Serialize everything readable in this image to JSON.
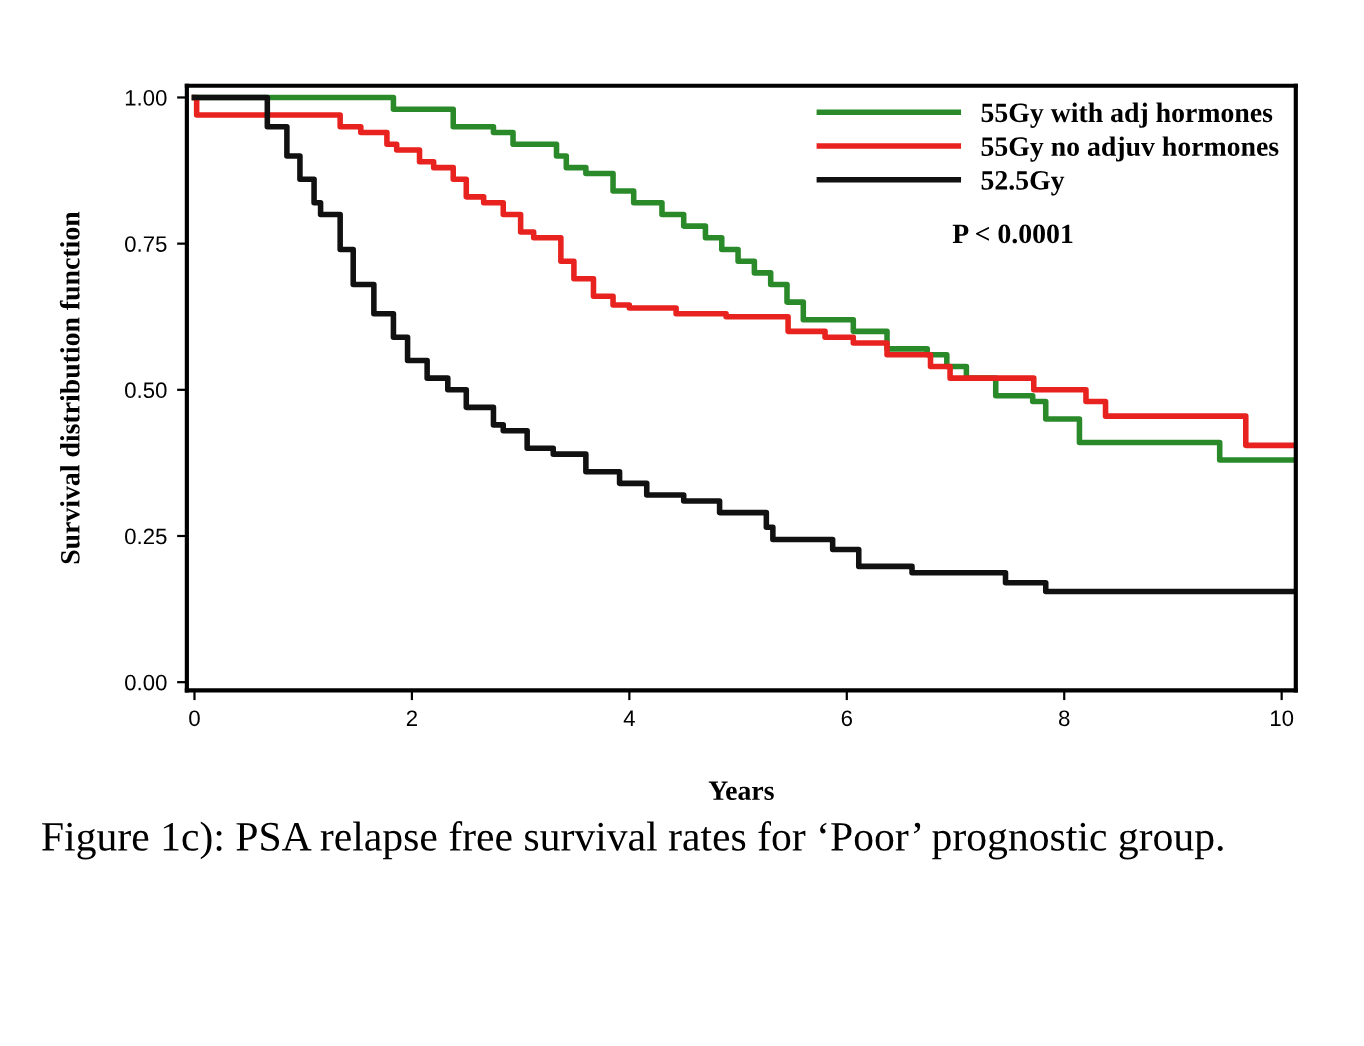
{
  "chart_data": {
    "type": "step",
    "xlabel": "Years",
    "ylabel": "Survival distribution function",
    "xlim": [
      -0.07,
      10.13
    ],
    "ylim": [
      -0.014,
      1.02
    ],
    "xticks": [
      0,
      2,
      4,
      6,
      8,
      10
    ],
    "yticks": [
      {
        "value": 0,
        "label": "0.00"
      },
      {
        "value": 0.25,
        "label": "0.25"
      },
      {
        "value": 0.5,
        "label": "0.50"
      },
      {
        "value": 0.75,
        "label": "0.75"
      },
      {
        "value": 1,
        "label": "1.00"
      }
    ],
    "grid": false,
    "legend": "top right",
    "marker": "none",
    "line_style": "solid",
    "annotations": [
      "P < 0.0001",
      "Figure 1c): PSA relapse free survival rates for ‘Poor’ prognostic group."
    ],
    "series": [
      {
        "name": "55Gy with adj hormones",
        "color": "#2a8a2a",
        "x": [
          0,
          1.83,
          2.38,
          2.75,
          2.93,
          3.33,
          3.42,
          3.6,
          3.85,
          4.04,
          4.3,
          4.5,
          4.7,
          4.85,
          5.0,
          5.15,
          5.3,
          5.45,
          5.6,
          6.06,
          6.37,
          6.74,
          6.92,
          7.1,
          7.37,
          7.71,
          7.83,
          8.14,
          9.43,
          10.13
        ],
        "values": [
          1.0,
          0.98,
          0.95,
          0.94,
          0.92,
          0.9,
          0.88,
          0.87,
          0.84,
          0.82,
          0.8,
          0.78,
          0.76,
          0.74,
          0.72,
          0.7,
          0.68,
          0.65,
          0.62,
          0.6,
          0.57,
          0.56,
          0.54,
          0.52,
          0.49,
          0.48,
          0.45,
          0.41,
          0.38,
          0.38
        ]
      },
      {
        "name": "55Gy no adjuv hormones",
        "color": "#e8221e",
        "x": [
          0,
          0.02,
          1.34,
          1.53,
          1.77,
          1.86,
          2.07,
          2.2,
          2.38,
          2.5,
          2.66,
          2.84,
          3.0,
          3.12,
          3.37,
          3.49,
          3.67,
          3.85,
          4.0,
          4.2,
          4.43,
          4.89,
          5.46,
          5.8,
          6.06,
          6.37,
          6.77,
          6.95,
          7.72,
          8.2,
          8.38,
          9.67,
          10.13
        ],
        "values": [
          1.0,
          0.97,
          0.95,
          0.94,
          0.92,
          0.91,
          0.89,
          0.88,
          0.86,
          0.83,
          0.82,
          0.8,
          0.77,
          0.76,
          0.72,
          0.69,
          0.66,
          0.645,
          0.64,
          0.64,
          0.63,
          0.625,
          0.6,
          0.59,
          0.58,
          0.56,
          0.54,
          0.52,
          0.5,
          0.48,
          0.455,
          0.405,
          0.405
        ]
      },
      {
        "name": "52.5Gy",
        "color": "#111111",
        "x": [
          0,
          0.67,
          0.85,
          0.97,
          1.1,
          1.16,
          1.34,
          1.46,
          1.65,
          1.83,
          1.96,
          2.14,
          2.33,
          2.5,
          2.75,
          2.84,
          3.06,
          3.3,
          3.6,
          3.91,
          4.16,
          4.5,
          4.83,
          5.26,
          5.32,
          5.87,
          6.11,
          6.6,
          7.46,
          7.83,
          8.84,
          10.13
        ],
        "values": [
          1.0,
          0.95,
          0.9,
          0.86,
          0.82,
          0.8,
          0.74,
          0.68,
          0.63,
          0.59,
          0.55,
          0.52,
          0.5,
          0.47,
          0.44,
          0.43,
          0.4,
          0.39,
          0.36,
          0.34,
          0.32,
          0.31,
          0.29,
          0.265,
          0.244,
          0.227,
          0.198,
          0.187,
          0.17,
          0.155,
          0.155,
          0.155
        ]
      }
    ]
  }
}
